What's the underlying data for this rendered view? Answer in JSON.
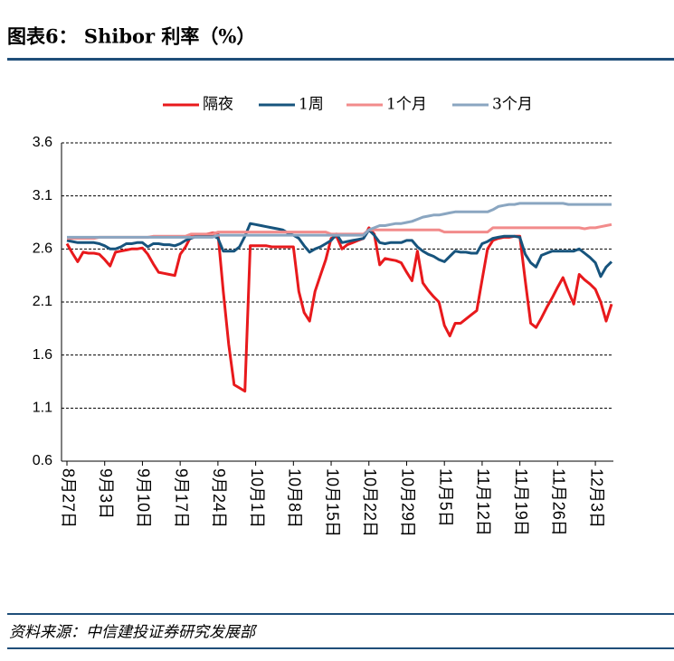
{
  "title": "图表6： Shibor 利率（%）",
  "source": "资料来源：中信建投证券研究发展部",
  "chart_data": {
    "type": "line",
    "categories": [
      "8月27日",
      null,
      null,
      null,
      null,
      null,
      null,
      "9月3日",
      null,
      null,
      null,
      null,
      null,
      null,
      "9月10日",
      null,
      null,
      null,
      null,
      null,
      null,
      "9月17日",
      null,
      null,
      null,
      null,
      null,
      null,
      "9月24日",
      null,
      null,
      null,
      null,
      null,
      null,
      "10月1日",
      null,
      null,
      null,
      null,
      null,
      null,
      "10月8日",
      null,
      null,
      null,
      null,
      null,
      null,
      "10月15日",
      null,
      null,
      null,
      null,
      null,
      null,
      "10月22日",
      null,
      null,
      null,
      null,
      null,
      null,
      "10月29日",
      null,
      null,
      null,
      null,
      null,
      null,
      "11月5日",
      null,
      null,
      null,
      null,
      null,
      null,
      "11月12日",
      null,
      null,
      null,
      null,
      null,
      null,
      "11月19日",
      null,
      null,
      null,
      null,
      null,
      null,
      "11月26日",
      null,
      null,
      null,
      null,
      null,
      null,
      "12月3日",
      null,
      null,
      null
    ],
    "series": [
      {
        "name": "隔夜",
        "color": "#e8191c",
        "values": [
          2.65,
          2.56,
          2.48,
          2.57,
          2.56,
          2.56,
          2.55,
          2.5,
          2.44,
          2.57,
          2.58,
          2.59,
          2.6,
          2.6,
          2.61,
          2.55,
          2.46,
          2.38,
          2.37,
          2.36,
          2.35,
          2.55,
          2.62,
          2.72,
          2.73,
          2.73,
          2.74,
          2.75,
          2.75,
          2.2,
          1.7,
          1.32,
          1.29,
          1.26,
          2.63,
          2.63,
          2.63,
          2.63,
          2.62,
          2.62,
          2.62,
          2.62,
          2.62,
          2.2,
          2.0,
          1.92,
          2.2,
          2.35,
          2.5,
          2.7,
          2.72,
          2.6,
          2.64,
          2.66,
          2.68,
          2.7,
          2.8,
          2.74,
          2.45,
          2.51,
          2.5,
          2.49,
          2.47,
          2.38,
          2.3,
          2.58,
          2.28,
          2.21,
          2.15,
          2.1,
          1.88,
          1.78,
          1.9,
          1.9,
          1.94,
          1.98,
          2.02,
          2.31,
          2.6,
          2.68,
          2.7,
          2.71,
          2.71,
          2.72,
          2.72,
          2.3,
          1.9,
          1.86,
          1.95,
          2.05,
          2.14,
          2.24,
          2.33,
          2.2,
          2.08,
          2.36,
          2.31,
          2.27,
          2.22,
          2.1,
          1.92,
          2.08
        ]
      },
      {
        "name": "1周",
        "color": "#17547d",
        "values": [
          2.68,
          2.67,
          2.66,
          2.66,
          2.66,
          2.66,
          2.65,
          2.63,
          2.6,
          2.6,
          2.62,
          2.65,
          2.65,
          2.66,
          2.66,
          2.62,
          2.65,
          2.65,
          2.64,
          2.64,
          2.63,
          2.65,
          2.68,
          2.7,
          2.72,
          2.72,
          2.73,
          2.73,
          2.7,
          2.58,
          2.58,
          2.58,
          2.62,
          2.72,
          2.84,
          2.83,
          2.82,
          2.81,
          2.8,
          2.79,
          2.78,
          2.75,
          2.73,
          2.7,
          2.63,
          2.57,
          2.6,
          2.62,
          2.65,
          2.68,
          2.74,
          2.66,
          2.67,
          2.68,
          2.69,
          2.7,
          2.78,
          2.73,
          2.66,
          2.65,
          2.66,
          2.66,
          2.66,
          2.68,
          2.68,
          2.62,
          2.58,
          2.55,
          2.53,
          2.5,
          2.48,
          2.53,
          2.58,
          2.57,
          2.57,
          2.56,
          2.56,
          2.65,
          2.67,
          2.7,
          2.71,
          2.72,
          2.72,
          2.72,
          2.71,
          2.55,
          2.47,
          2.43,
          2.54,
          2.56,
          2.58,
          2.58,
          2.58,
          2.58,
          2.58,
          2.6,
          2.56,
          2.52,
          2.47,
          2.34,
          2.43,
          2.48
        ]
      },
      {
        "name": "1个月",
        "color": "#f28b8b",
        "values": [
          2.7,
          2.7,
          2.7,
          2.7,
          2.7,
          2.7,
          2.71,
          2.71,
          2.71,
          2.71,
          2.71,
          2.71,
          2.71,
          2.71,
          2.71,
          2.71,
          2.72,
          2.72,
          2.72,
          2.72,
          2.72,
          2.72,
          2.72,
          2.74,
          2.74,
          2.74,
          2.74,
          2.74,
          2.76,
          2.76,
          2.76,
          2.76,
          2.76,
          2.76,
          2.76,
          2.76,
          2.76,
          2.76,
          2.76,
          2.76,
          2.76,
          2.76,
          2.76,
          2.76,
          2.76,
          2.76,
          2.76,
          2.76,
          2.76,
          2.74,
          2.74,
          2.74,
          2.74,
          2.74,
          2.74,
          2.74,
          2.78,
          2.78,
          2.78,
          2.78,
          2.78,
          2.78,
          2.78,
          2.78,
          2.78,
          2.78,
          2.78,
          2.78,
          2.78,
          2.78,
          2.76,
          2.76,
          2.76,
          2.76,
          2.76,
          2.76,
          2.76,
          2.76,
          2.76,
          2.8,
          2.8,
          2.8,
          2.8,
          2.8,
          2.8,
          2.8,
          2.8,
          2.8,
          2.8,
          2.8,
          2.8,
          2.8,
          2.8,
          2.8,
          2.8,
          2.8,
          2.79,
          2.8,
          2.8,
          2.81,
          2.82,
          2.83
        ]
      },
      {
        "name": "3个月",
        "color": "#8aa6c1",
        "values": [
          2.71,
          2.71,
          2.71,
          2.71,
          2.71,
          2.71,
          2.71,
          2.71,
          2.71,
          2.71,
          2.71,
          2.71,
          2.71,
          2.71,
          2.71,
          2.71,
          2.71,
          2.71,
          2.71,
          2.71,
          2.71,
          2.71,
          2.71,
          2.71,
          2.71,
          2.71,
          2.71,
          2.71,
          2.73,
          2.73,
          2.73,
          2.73,
          2.73,
          2.73,
          2.73,
          2.73,
          2.73,
          2.73,
          2.73,
          2.73,
          2.73,
          2.73,
          2.73,
          2.73,
          2.73,
          2.73,
          2.73,
          2.73,
          2.73,
          2.73,
          2.73,
          2.73,
          2.73,
          2.73,
          2.73,
          2.73,
          2.78,
          2.8,
          2.82,
          2.82,
          2.83,
          2.84,
          2.84,
          2.85,
          2.86,
          2.88,
          2.9,
          2.91,
          2.92,
          2.92,
          2.93,
          2.94,
          2.95,
          2.95,
          2.95,
          2.95,
          2.95,
          2.95,
          2.95,
          2.97,
          3.0,
          3.01,
          3.02,
          3.02,
          3.03,
          3.03,
          3.03,
          3.03,
          3.03,
          3.03,
          3.03,
          3.03,
          3.03,
          3.02,
          3.02,
          3.02,
          3.02,
          3.02,
          3.02,
          3.02,
          3.02,
          3.02
        ]
      }
    ],
    "ylim": [
      0.6,
      3.6
    ],
    "yticks": [
      3.6,
      3.1,
      2.6,
      2.1,
      1.6,
      1.1,
      0.6
    ],
    "grid": true,
    "legend": "top"
  }
}
